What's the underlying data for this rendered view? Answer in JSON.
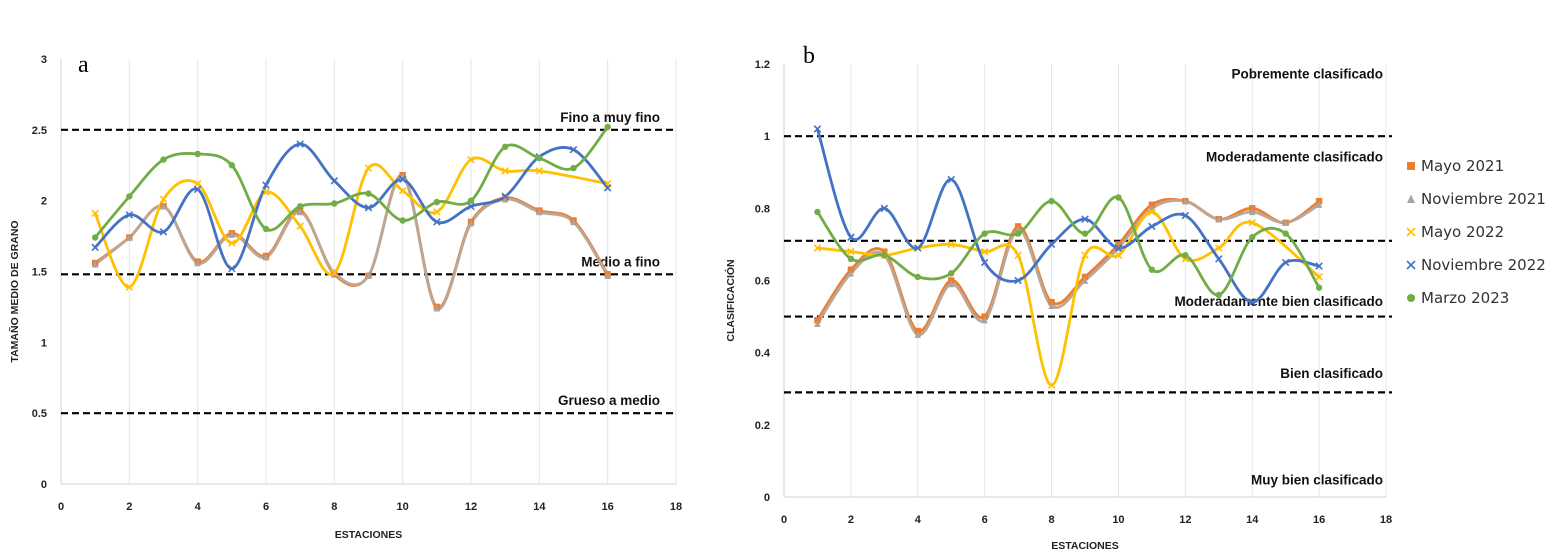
{
  "colors": {
    "Mayo 2021": "#ed7d31",
    "Noviembre 2021": "#a5a5a5",
    "Mayo 2022": "#ffc000",
    "Noviembre 2022": "#4472c4",
    "Marzo 2023": "#70ad47",
    "smooth_lines": {
      "Mayo 2021": "#ed7d31",
      "Noviembre 2021": "#b9a898",
      "Mayo 2022": "#ffc000",
      "Noviembre 2022": "#4472c4",
      "Marzo 2023": "#70ad47"
    }
  },
  "legend": {
    "items": [
      {
        "name": "Mayo 2021",
        "marker": "square"
      },
      {
        "name": "Noviembre 2021",
        "marker": "triangle"
      },
      {
        "name": "Mayo 2022",
        "marker": "x"
      },
      {
        "name": "Noviembre 2022",
        "marker": "x"
      },
      {
        "name": "Marzo 2023",
        "marker": "circle"
      }
    ]
  },
  "chart_data": [
    {
      "panel_label": "a",
      "type": "scatter",
      "smooth": true,
      "xlabel": "ESTACIONES",
      "ylabel": "TAMAÑO MEDIO DE GRANO",
      "xlim": [
        0,
        18
      ],
      "ylim": [
        0,
        3
      ],
      "xticks": [
        "0",
        "2",
        "4",
        "6",
        "8",
        "10",
        "12",
        "14",
        "16",
        "18"
      ],
      "yticks": [
        "0",
        "0.5",
        "1",
        "1.5",
        "2",
        "2.5",
        "3"
      ],
      "grid": "vertical",
      "reference_lines": [
        {
          "y": 2.5,
          "label": "Fino a muy fino"
        },
        {
          "y": 1.48,
          "label": "Medio a fino"
        },
        {
          "y": 0.5,
          "label": "Grueso a medio"
        }
      ],
      "series": [
        {
          "name": "Mayo 2021",
          "x": [
            1,
            2,
            3,
            4,
            5,
            6,
            7,
            8,
            9,
            10,
            11,
            12,
            13,
            14,
            15,
            16
          ],
          "values": [
            1.56,
            1.74,
            1.96,
            1.57,
            1.77,
            1.61,
            1.93,
            1.48,
            1.47,
            2.18,
            1.25,
            1.85,
            2.02,
            1.93,
            1.86,
            1.48
          ]
        },
        {
          "name": "Noviembre 2021",
          "x": [
            1,
            2,
            3,
            4,
            5,
            6,
            7,
            8,
            9,
            10,
            11,
            12,
            13,
            14,
            15,
            16
          ],
          "values": [
            1.55,
            1.74,
            1.96,
            1.56,
            1.76,
            1.6,
            1.92,
            1.49,
            1.47,
            2.17,
            1.24,
            1.84,
            2.01,
            1.92,
            1.85,
            1.47
          ]
        },
        {
          "name": "Mayo 2022",
          "x": [
            1,
            2,
            3,
            4,
            5,
            6,
            7,
            8,
            9,
            10,
            11,
            12,
            13,
            14,
            15,
            16
          ],
          "values": [
            1.91,
            1.39,
            2.01,
            2.12,
            1.7,
            2.06,
            1.82,
            1.49,
            2.23,
            2.07,
            1.92,
            2.29,
            2.21,
            2.21,
            null,
            2.12
          ]
        },
        {
          "name": "Noviembre 2022",
          "x": [
            1,
            2,
            3,
            4,
            5,
            6,
            7,
            8,
            9,
            10,
            11,
            12,
            13,
            14,
            15,
            16
          ],
          "values": [
            1.67,
            1.9,
            1.78,
            2.08,
            1.52,
            2.11,
            2.4,
            2.14,
            1.95,
            2.15,
            1.85,
            1.96,
            2.03,
            2.31,
            2.36,
            2.09
          ]
        },
        {
          "name": "Marzo 2023",
          "x": [
            1,
            2,
            3,
            4,
            5,
            6,
            7,
            8,
            9,
            10,
            11,
            12,
            13,
            14,
            15,
            16
          ],
          "values": [
            1.74,
            2.03,
            2.29,
            2.33,
            2.25,
            1.8,
            1.96,
            1.98,
            2.05,
            1.86,
            1.99,
            2.0,
            2.38,
            2.3,
            2.23,
            2.52
          ]
        }
      ]
    },
    {
      "panel_label": "b",
      "type": "scatter",
      "smooth": true,
      "xlabel": "ESTACIONES",
      "ylabel": "CLASIFICACIÓN",
      "xlim": [
        0,
        18
      ],
      "ylim": [
        0,
        1.2
      ],
      "xticks": [
        "0",
        "2",
        "4",
        "6",
        "8",
        "10",
        "12",
        "14",
        "16",
        "18"
      ],
      "yticks": [
        "0",
        "0.2",
        "0.4",
        "0.6",
        "0.8",
        "1",
        "1.2"
      ],
      "grid": "vertical",
      "reference_lines": [
        {
          "y": 1.0
        },
        {
          "y": 0.71
        },
        {
          "y": 0.5
        },
        {
          "y": 0.29
        }
      ],
      "zone_labels": [
        {
          "y": 1.16,
          "label": "Pobremente clasificado"
        },
        {
          "y": 0.93,
          "label": "Moderadamente clasificado"
        },
        {
          "y": 0.53,
          "label": "Moderadamente bien clasificado"
        },
        {
          "y": 0.33,
          "label": "Bien clasificado"
        },
        {
          "y": 0.035,
          "label": "Muy bien clasificado"
        }
      ],
      "series": [
        {
          "name": "Mayo 2021",
          "x": [
            1,
            2,
            3,
            4,
            5,
            6,
            7,
            8,
            9,
            10,
            11,
            12,
            13,
            14,
            15,
            16
          ],
          "values": [
            0.49,
            0.63,
            0.68,
            0.46,
            0.6,
            0.5,
            0.75,
            0.54,
            0.61,
            0.7,
            0.81,
            0.82,
            0.77,
            0.8,
            0.76,
            0.82
          ]
        },
        {
          "name": "Noviembre 2021",
          "x": [
            1,
            2,
            3,
            4,
            5,
            6,
            7,
            8,
            9,
            10,
            11,
            12,
            13,
            14,
            15,
            16
          ],
          "values": [
            0.48,
            0.62,
            0.67,
            0.45,
            0.59,
            0.49,
            0.74,
            0.53,
            0.6,
            0.69,
            0.8,
            0.82,
            0.77,
            0.79,
            0.76,
            0.81
          ]
        },
        {
          "name": "Mayo 2022",
          "x": [
            1,
            2,
            3,
            4,
            5,
            6,
            7,
            8,
            9,
            10,
            11,
            12,
            13,
            14,
            15,
            16
          ],
          "values": [
            0.69,
            0.68,
            0.67,
            0.69,
            0.7,
            0.68,
            0.67,
            0.31,
            0.67,
            0.67,
            0.79,
            0.66,
            0.69,
            0.76,
            null,
            0.61
          ]
        },
        {
          "name": "Noviembre 2022",
          "x": [
            1,
            2,
            3,
            4,
            5,
            6,
            7,
            8,
            9,
            10,
            11,
            12,
            13,
            14,
            15,
            16
          ],
          "values": [
            1.02,
            0.72,
            0.8,
            0.69,
            0.88,
            0.65,
            0.6,
            0.7,
            0.77,
            0.69,
            0.75,
            0.78,
            0.66,
            0.54,
            0.65,
            0.64
          ]
        },
        {
          "name": "Marzo 2023",
          "x": [
            1,
            2,
            3,
            4,
            5,
            6,
            7,
            8,
            9,
            10,
            11,
            12,
            13,
            14,
            15,
            16
          ],
          "values": [
            0.79,
            0.66,
            0.67,
            0.61,
            0.62,
            0.73,
            0.73,
            0.82,
            0.73,
            0.83,
            0.63,
            0.67,
            0.56,
            0.72,
            0.73,
            0.58
          ]
        }
      ]
    }
  ]
}
